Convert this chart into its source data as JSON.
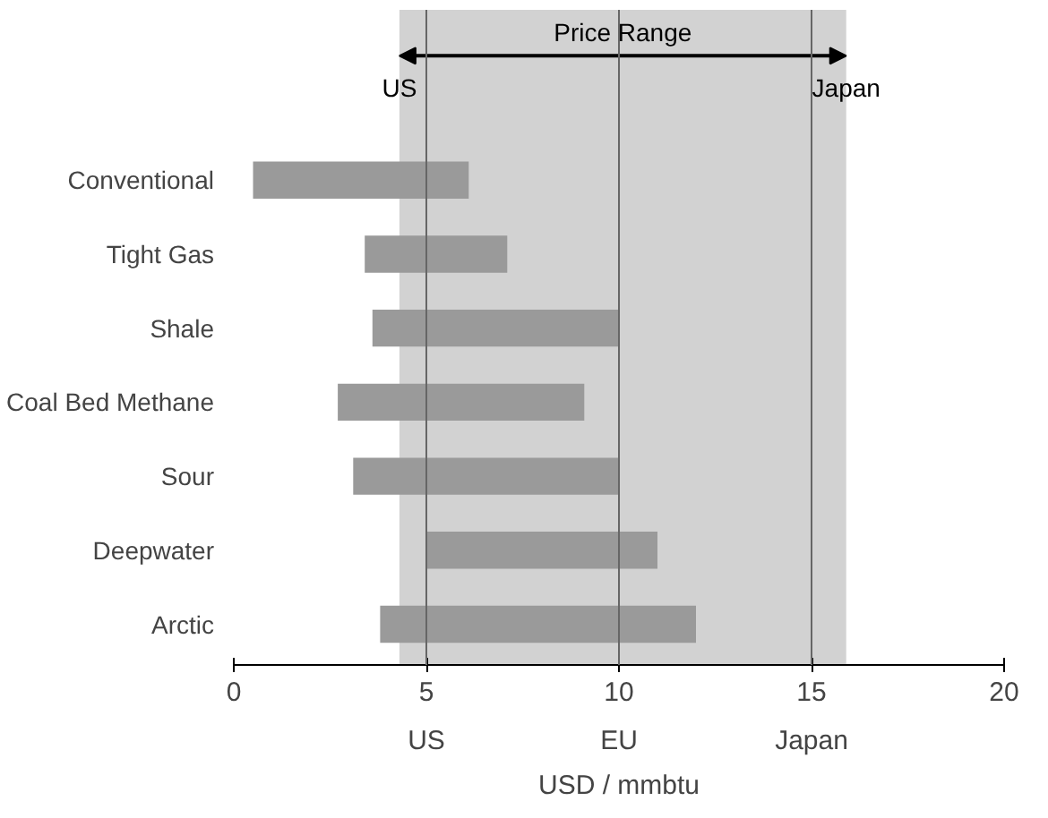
{
  "chart_data": {
    "type": "bar",
    "orientation": "horizontal",
    "xlabel": "USD / mmbtu",
    "categories": [
      "Conventional",
      "Tight Gas",
      "Shale",
      "Coal Bed Methane",
      "Sour",
      "Deepwater",
      "Arctic"
    ],
    "base": [
      0.5,
      3.4,
      3.6,
      2.7,
      3.1,
      5.0,
      3.8
    ],
    "values": [
      5.6,
      3.7,
      6.4,
      6.4,
      6.9,
      6.0,
      8.2
    ],
    "color": "#9a9a9a",
    "xlim": [
      0,
      20
    ],
    "xticks": [
      0,
      5,
      10,
      15,
      20
    ],
    "bands": [
      {
        "axis": "x",
        "from": 4.3,
        "to": 15.9,
        "label": "Price Range",
        "color": "#d2d2d2"
      }
    ],
    "ref_lines": [
      {
        "axis": "x",
        "value": 5,
        "color": "#666666",
        "label": "US"
      },
      {
        "axis": "x",
        "value": 10,
        "color": "#666666",
        "label": "EU"
      },
      {
        "axis": "x",
        "value": 15,
        "color": "#666666",
        "label": "Japan"
      }
    ],
    "annotations": [
      {
        "text": "US",
        "x": 4.3
      },
      {
        "text": "Japan",
        "x": 15.9
      }
    ],
    "grid": false
  }
}
